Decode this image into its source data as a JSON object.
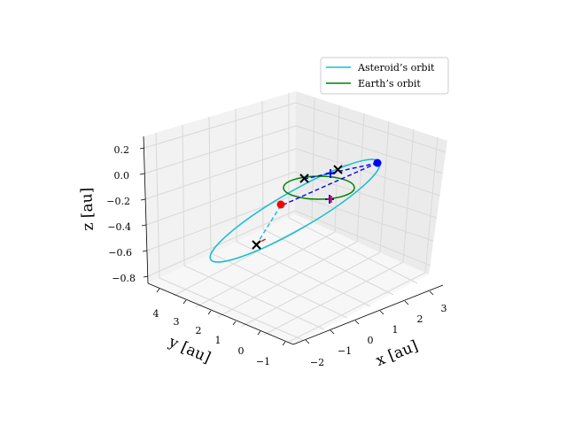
{
  "chart_data": {
    "type": "line",
    "projection": "3d",
    "xlabel": "x [au]",
    "ylabel": "y [au]",
    "zlabel": "z [au]",
    "xticks": [
      "−2",
      "−1",
      "0",
      "1",
      "2",
      "3"
    ],
    "yticks": [
      "−1",
      "0",
      "1",
      "2",
      "3",
      "4"
    ],
    "zticks": [
      "0.2",
      "0.0",
      "−0.2",
      "−0.4",
      "−0.6",
      "−0.8"
    ],
    "xlim": [
      -2.5,
      3.5
    ],
    "ylim": [
      -1.5,
      4.5
    ],
    "zlim": [
      -0.85,
      0.35
    ],
    "grid": true,
    "legend_position": "top-right",
    "legend": [
      {
        "label": "Asteroid’s orbit",
        "color": "#17becf"
      },
      {
        "label": "Earth’s orbit",
        "color": "#008000"
      }
    ],
    "series": [
      {
        "name": "Asteroid’s orbit",
        "color": "#17becf",
        "kind": "ellipse",
        "perihelion": [
          -0.6,
          0.8,
          0.0
        ],
        "aphelion": [
          2.9,
          0.3,
          0.25
        ]
      },
      {
        "name": "Earth’s orbit",
        "color": "#008000",
        "kind": "circle",
        "center": [
          0,
          0,
          0
        ],
        "radius": 1.0
      }
    ],
    "markers": [
      {
        "type": "dot",
        "color": "#ff0000",
        "point": [
          -0.3,
          1.6,
          -0.1
        ]
      },
      {
        "type": "dot",
        "color": "#0000ff",
        "point": [
          2.4,
          -0.2,
          0.25
        ]
      },
      {
        "type": "cross",
        "color": "#000000",
        "point": [
          -0.3,
          0.7,
          0.0
        ]
      },
      {
        "type": "cross",
        "color": "#000000",
        "point": [
          0.7,
          -0.4,
          0.05
        ]
      },
      {
        "type": "cross",
        "color": "#000000",
        "point": [
          -0.4,
          2.9,
          -0.55
        ]
      },
      {
        "type": "plus",
        "color": "#0000ff",
        "point": [
          0.6,
          -0.3,
          0.0
        ]
      },
      {
        "type": "plus",
        "color": "#0000ff",
        "point": [
          1.0,
          0.4,
          -0.05
        ]
      }
    ]
  },
  "colors": {
    "pane_left": "#f2f2f2",
    "pane_right": "#ebebeb",
    "pane_bottom": "#f7f7f7",
    "grid": "#d9d9d9",
    "red": "#ff0000",
    "blue": "#0000ff",
    "cyan": "#17becf",
    "green": "#008000"
  }
}
